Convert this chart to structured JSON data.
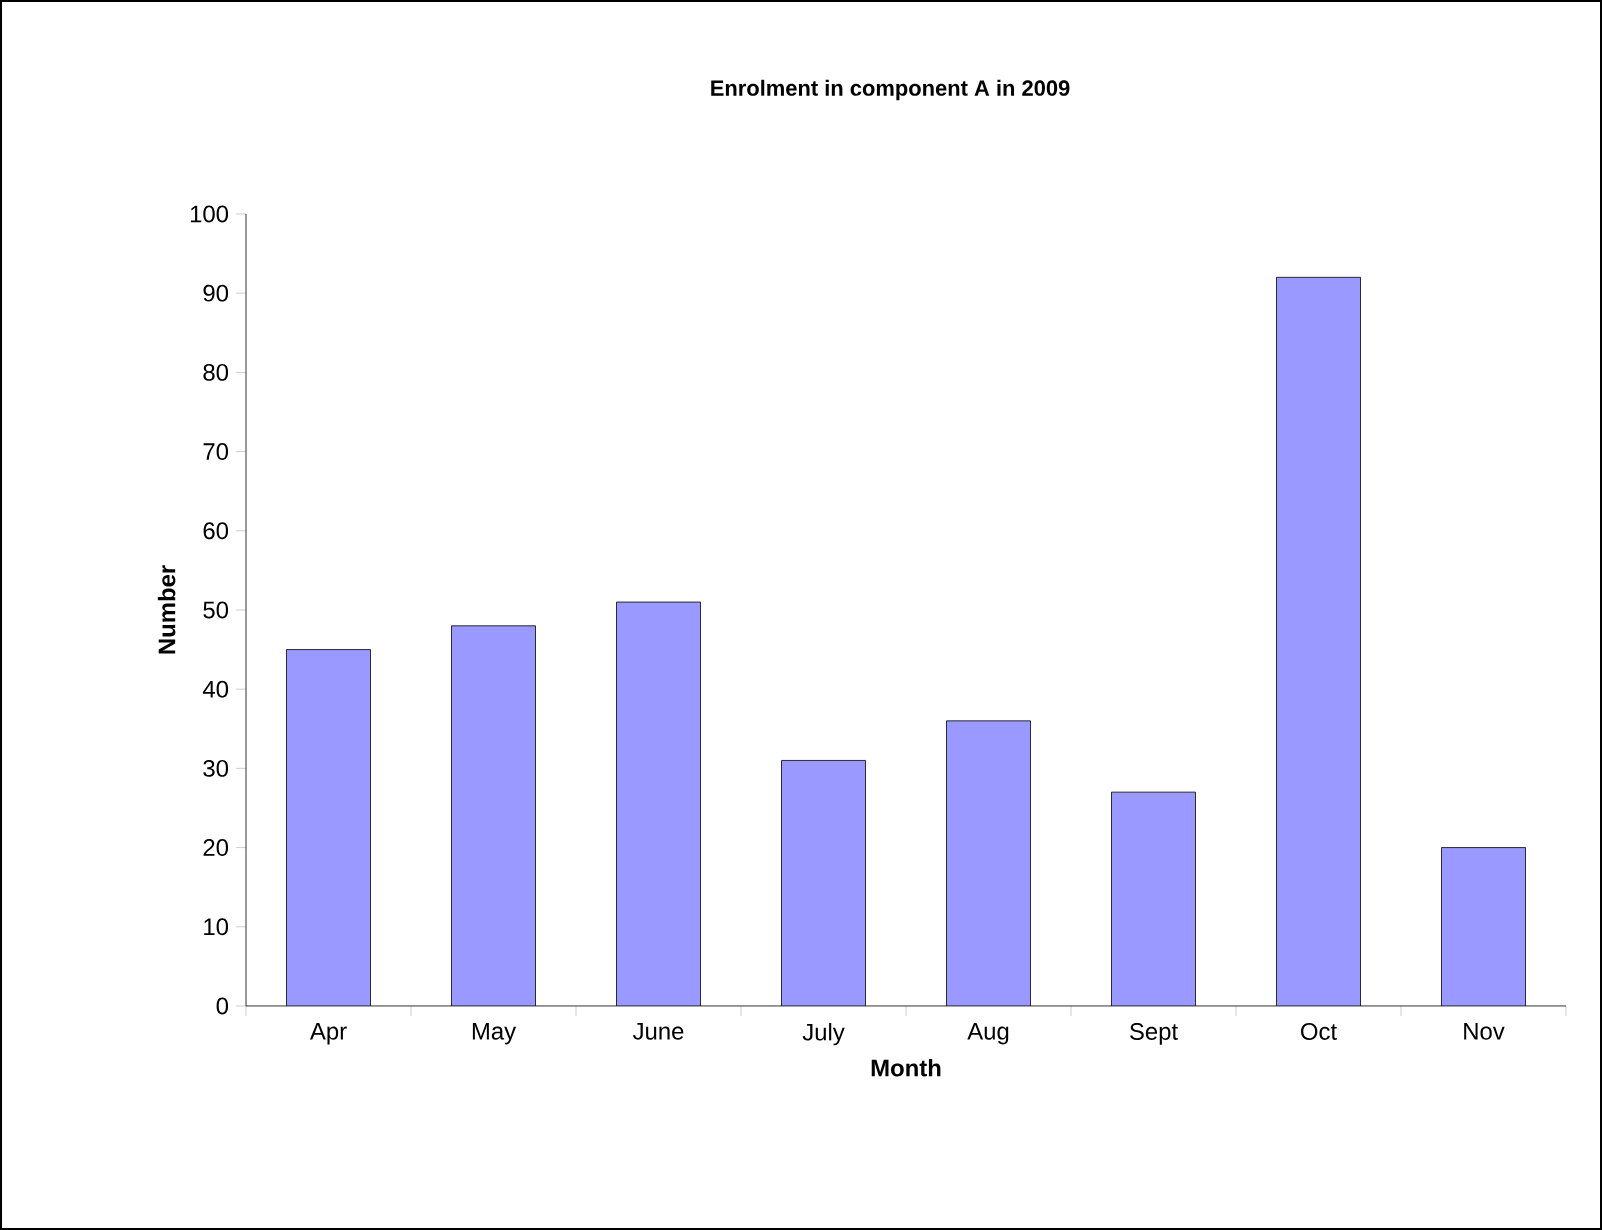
{
  "chart_data": {
    "type": "bar",
    "title": "Enrolment in component A in 2009",
    "xlabel": "Month",
    "ylabel": "Number",
    "categories": [
      "Apr",
      "May",
      "June",
      "July",
      "Aug",
      "Sept",
      "Oct",
      "Nov"
    ],
    "values": [
      45,
      48,
      51,
      31,
      36,
      27,
      92,
      20
    ],
    "color": "#9999ff",
    "ylim": [
      0,
      100
    ],
    "yticks": [
      0,
      10,
      20,
      30,
      40,
      50,
      60,
      70,
      80,
      90,
      100
    ],
    "grid": false
  }
}
